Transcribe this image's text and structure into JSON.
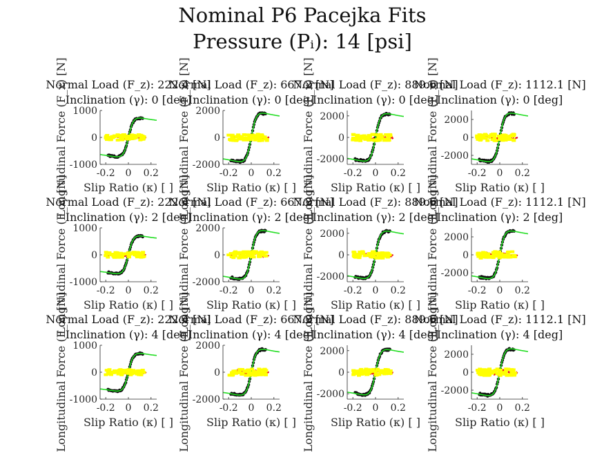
{
  "figure": {
    "title_line1": "Nominal P6 Pacejka Fits",
    "title_line2": "Pressure (Pᵢ): 14 [psi]"
  },
  "colors": {
    "measured": "#111111",
    "fit": "#22dd22",
    "residual_red": "#e8001c",
    "residual_yellow": "#ffff00"
  },
  "chart_data": [
    {
      "type": "scatter",
      "row": 0,
      "col": 0,
      "title_line1": "Normal Load (F_z): 222.4 [N]",
      "title_line2": "Inclination (γ): 0 [deg]",
      "xlabel": "Slip Ratio (κ) [ ]",
      "ylabel": "Longitudinal Force (F_x) [N]",
      "xlim": [
        -0.25,
        0.25
      ],
      "ylim": [
        -1000,
        1000
      ],
      "xticks": [
        -0.2,
        0,
        0.2
      ],
      "yticks": [
        -1000,
        0,
        1000
      ],
      "peak_force": 720,
      "grid": false
    },
    {
      "type": "scatter",
      "row": 0,
      "col": 1,
      "title_line1": "Normal Load (F_z): 667.2 [N]",
      "title_line2": "Inclination (γ): 0 [deg]",
      "xlabel": "Slip Ratio (κ) [ ]",
      "ylabel": "Longitudinal Force (F_x) [N]",
      "xlim": [
        -0.25,
        0.25
      ],
      "ylim": [
        -2000,
        2000
      ],
      "xticks": [
        -0.2,
        0,
        0.2
      ],
      "yticks": [
        -2000,
        0,
        2000
      ],
      "peak_force": 1800,
      "grid": false
    },
    {
      "type": "scatter",
      "row": 0,
      "col": 2,
      "title_line1": "Normal Load (F_z): 889.6 [N]",
      "title_line2": "Inclination (γ): 0 [deg]",
      "xlabel": "Slip Ratio (κ) [ ]",
      "ylabel": "Longitudinal Force (F_x) [N]",
      "xlim": [
        -0.25,
        0.25
      ],
      "ylim": [
        -2500,
        2500
      ],
      "xticks": [
        -0.2,
        0,
        0.2
      ],
      "yticks": [
        -2000,
        0,
        2000
      ],
      "peak_force": 2200,
      "grid": false
    },
    {
      "type": "scatter",
      "row": 0,
      "col": 3,
      "title_line1": "Normal Load (F_z): 1112.1 [N]",
      "title_line2": "Inclination (γ): 0 [deg]",
      "xlabel": "Slip Ratio (κ) [ ]",
      "ylabel": "Longitudinal Force (F_x) [N]",
      "xlim": [
        -0.25,
        0.25
      ],
      "ylim": [
        -3000,
        3000
      ],
      "xticks": [
        -0.2,
        0,
        0.2
      ],
      "yticks": [
        -2000,
        0,
        2000
      ],
      "peak_force": 2700,
      "grid": false
    },
    {
      "type": "scatter",
      "row": 1,
      "col": 0,
      "title_line1": "Normal Load (F_z): 222.4 [N]",
      "title_line2": "Inclination (γ): 2 [deg]",
      "xlabel": "Slip Ratio (κ) [ ]",
      "ylabel": "Longitudinal Force (F_x) [N]",
      "xlim": [
        -0.25,
        0.25
      ],
      "ylim": [
        -1000,
        1000
      ],
      "xticks": [
        -0.2,
        0,
        0.2
      ],
      "yticks": [
        -1000,
        0,
        1000
      ],
      "peak_force": 700,
      "grid": false
    },
    {
      "type": "scatter",
      "row": 1,
      "col": 1,
      "title_line1": "Normal Load (F_z): 667.2 [N]",
      "title_line2": "Inclination (γ): 2 [deg]",
      "xlabel": "Slip Ratio (κ) [ ]",
      "ylabel": "Longitudinal Force (F_x) [N]",
      "xlim": [
        -0.25,
        0.25
      ],
      "ylim": [
        -2000,
        2000
      ],
      "xticks": [
        -0.2,
        0,
        0.2
      ],
      "yticks": [
        -2000,
        0,
        2000
      ],
      "peak_force": 1800,
      "grid": false
    },
    {
      "type": "scatter",
      "row": 1,
      "col": 2,
      "title_line1": "Normal Load (F_z): 889.6 [N]",
      "title_line2": "Inclination (γ): 2 [deg]",
      "xlabel": "Slip Ratio (κ) [ ]",
      "ylabel": "Longitudinal Force (F_x) [N]",
      "xlim": [
        -0.25,
        0.25
      ],
      "ylim": [
        -2500,
        2500
      ],
      "xticks": [
        -0.2,
        0,
        0.2
      ],
      "yticks": [
        -2000,
        0,
        2000
      ],
      "peak_force": 2200,
      "grid": false
    },
    {
      "type": "scatter",
      "row": 1,
      "col": 3,
      "title_line1": "Normal Load (F_z): 1112.1 [N]",
      "title_line2": "Inclination (γ): 2 [deg]",
      "xlabel": "Slip Ratio (κ) [ ]",
      "ylabel": "Longitudinal Force (F_x) [N]",
      "xlim": [
        -0.25,
        0.25
      ],
      "ylim": [
        -3000,
        3000
      ],
      "xticks": [
        -0.2,
        0,
        0.2
      ],
      "yticks": [
        -2000,
        0,
        2000
      ],
      "peak_force": 2650,
      "grid": false
    },
    {
      "type": "scatter",
      "row": 2,
      "col": 0,
      "title_line1": "Normal Load (F_z): 222.4 [N]",
      "title_line2": "Inclination (γ): 4 [deg]",
      "xlabel": "Slip Ratio (κ) [ ]",
      "ylabel": "Longitudinal Force (F_x) [N]",
      "xlim": [
        -0.25,
        0.25
      ],
      "ylim": [
        -1000,
        1000
      ],
      "xticks": [
        -0.2,
        0,
        0.2
      ],
      "yticks": [
        -1000,
        0,
        1000
      ],
      "peak_force": 700,
      "grid": false
    },
    {
      "type": "scatter",
      "row": 2,
      "col": 1,
      "title_line1": "Normal Load (F_z): 667.2 [N]",
      "title_line2": "Inclination (γ): 4 [deg]",
      "xlabel": "Slip Ratio (κ) [ ]",
      "ylabel": "Longitudinal Force (F_x) [N]",
      "xlim": [
        -0.25,
        0.25
      ],
      "ylim": [
        -2000,
        2000
      ],
      "xticks": [
        -0.2,
        0,
        0.2
      ],
      "yticks": [
        -2000,
        0,
        2000
      ],
      "peak_force": 1700,
      "grid": false
    },
    {
      "type": "scatter",
      "row": 2,
      "col": 2,
      "title_line1": "Normal Load (F_z): 889.6 [N]",
      "title_line2": "Inclination (γ): 4 [deg]",
      "xlabel": "Slip Ratio (κ) [ ]",
      "ylabel": "Longitudinal Force (F_x) [N]",
      "xlim": [
        -0.25,
        0.25
      ],
      "ylim": [
        -2500,
        2500
      ],
      "xticks": [
        -0.2,
        0,
        0.2
      ],
      "yticks": [
        -2000,
        0,
        2000
      ],
      "peak_force": 2100,
      "grid": false
    },
    {
      "type": "scatter",
      "row": 2,
      "col": 3,
      "title_line1": "Normal Load (F_z): 1112.1 [N]",
      "title_line2": "Inclination (γ): 4 [deg]",
      "xlabel": "Slip Ratio (κ) [ ]",
      "ylabel": "Longitudinal Force (F_x) [N]",
      "xlim": [
        -0.25,
        0.25
      ],
      "ylim": [
        -3000,
        3000
      ],
      "xticks": [
        -0.2,
        0,
        0.2
      ],
      "yticks": [
        -2000,
        0,
        2000
      ],
      "peak_force": 2600,
      "grid": false
    }
  ]
}
